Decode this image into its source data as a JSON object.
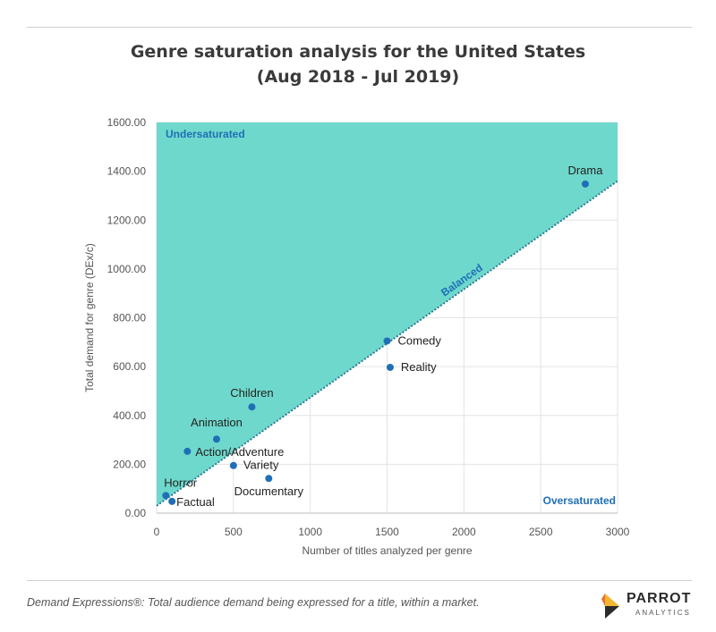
{
  "header": {
    "title_line1": "Genre saturation analysis for the United States",
    "title_line2": "(Aug 2018 - Jul 2019)"
  },
  "chart_data": {
    "type": "scatter",
    "title": "Genre saturation analysis for the United States (Aug 2018 - Jul 2019)",
    "xlabel": "Number of titles analyzed per genre",
    "ylabel": "Total demand for genre (DEx/c)",
    "xlim": [
      0,
      3000
    ],
    "ylim": [
      0,
      1600
    ],
    "x_ticks": [
      0,
      500,
      1000,
      1500,
      2000,
      2500,
      3000
    ],
    "y_ticks": [
      0,
      200,
      400,
      600,
      800,
      1000,
      1200,
      1400,
      1600
    ],
    "y_tick_labels": [
      "0.00",
      "200.00",
      "400.00",
      "600.00",
      "800.00",
      "1000.00",
      "1200.00",
      "1400.00",
      "1600.00"
    ],
    "grid": true,
    "balance_line": {
      "label": "Balanced",
      "from": [
        0,
        30
      ],
      "to": [
        3000,
        1360
      ]
    },
    "regions": {
      "upper": "Undersaturated",
      "lower": "Oversaturated"
    },
    "colors": {
      "region_fill": "#6fd8cc",
      "points": "#1f6fb5",
      "line": "#2a7a94",
      "region_text": "#1f6fb5"
    },
    "points": [
      {
        "label": "Drama",
        "x": 2790,
        "y": 1348
      },
      {
        "label": "Comedy",
        "x": 1500,
        "y": 705
      },
      {
        "label": "Reality",
        "x": 1520,
        "y": 597
      },
      {
        "label": "Children",
        "x": 620,
        "y": 435
      },
      {
        "label": "Animation",
        "x": 390,
        "y": 303
      },
      {
        "label": "Action/Adventure",
        "x": 200,
        "y": 253
      },
      {
        "label": "Variety",
        "x": 500,
        "y": 195
      },
      {
        "label": "Documentary",
        "x": 730,
        "y": 142
      },
      {
        "label": "Horror",
        "x": 60,
        "y": 72
      },
      {
        "label": "Factual",
        "x": 100,
        "y": 48
      }
    ]
  },
  "footer": {
    "note": "Demand Expressions®:  Total audience demand being expressed for a title, within a market.",
    "logo_name": "PARROT",
    "logo_sub": "ANALYTICS"
  }
}
